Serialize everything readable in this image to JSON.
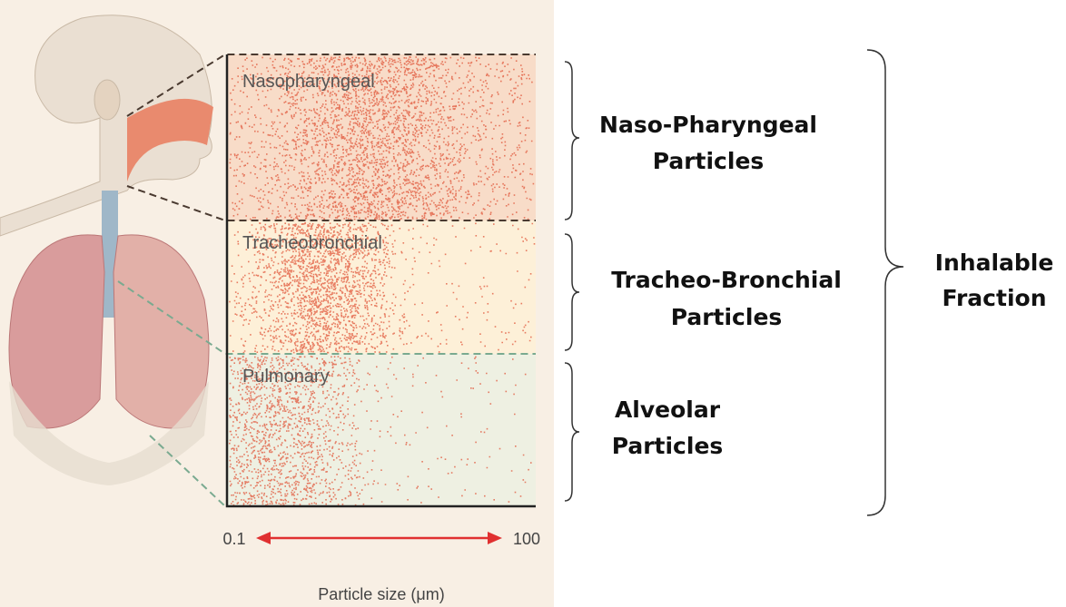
{
  "regions": [
    {
      "label": "Nasopharyngeal"
    },
    {
      "label": "Tracheobronchial"
    },
    {
      "label": "Pulmonary"
    }
  ],
  "axis": {
    "min_label": 0.1,
    "max_label": 100,
    "title": "Particle size (μm)"
  },
  "brace_labels": [
    {
      "lines": [
        "Naso-Pharyngeal",
        "Particles"
      ]
    },
    {
      "lines": [
        "Tracheo-Bronchial",
        "Particles"
      ]
    },
    {
      "lines": [
        "Alveolar",
        "Particles"
      ]
    }
  ],
  "total_label": {
    "lines": [
      "Inhalable",
      "Fraction"
    ]
  }
}
